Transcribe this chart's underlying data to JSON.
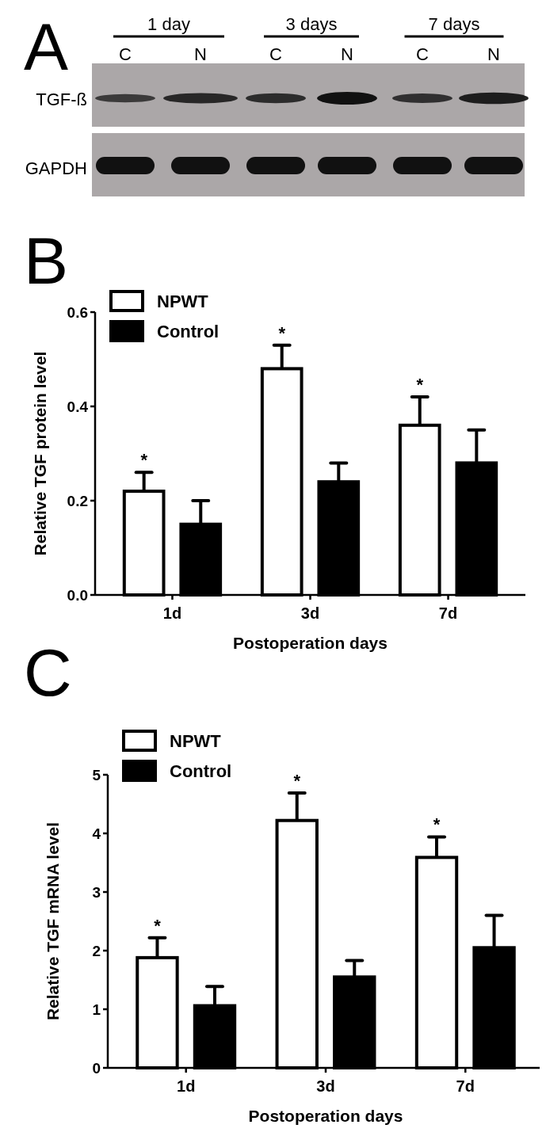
{
  "chart_data": [
    {
      "type": "other",
      "title": "A",
      "annotations": [
        "1 day",
        "3 days",
        "7 days",
        "C",
        "N",
        "C",
        "N",
        "C",
        "N",
        "TGF-ß",
        "GAPDH"
      ]
    },
    {
      "type": "bar",
      "title": "B",
      "xlabel": "Postoperation days",
      "ylabel": "Relative TGF protein level",
      "categories": [
        "1d",
        "3d",
        "7d"
      ],
      "series": [
        {
          "name": "NPWT",
          "color": "#ffffff",
          "values": [
            0.22,
            0.48,
            0.36
          ],
          "errors": [
            [
              0.22,
              0.26
            ],
            [
              0.48,
              0.53
            ],
            [
              0.36,
              0.42
            ]
          ]
        },
        {
          "name": "Control",
          "color": "#000000",
          "values": [
            0.15,
            0.24,
            0.28
          ],
          "errors": [
            [
              0.15,
              0.2
            ],
            [
              0.24,
              0.28
            ],
            [
              0.28,
              0.35
            ]
          ]
        }
      ],
      "ylim": [
        0,
        0.6
      ],
      "yticks": [
        {
          "value": 0,
          "label": "0.0"
        },
        0.2,
        0.4,
        0.6
      ],
      "legend": "top left",
      "annotations": [
        "*",
        "*",
        "*"
      ]
    },
    {
      "type": "bar",
      "title": "C",
      "xlabel": "Postoperation days",
      "ylabel": "Relative TGF mRNA level",
      "categories": [
        "1d",
        "3d",
        "7d"
      ],
      "series": [
        {
          "name": "NPWT",
          "color": "#ffffff",
          "values": [
            1.88,
            4.22,
            3.59
          ],
          "errors": [
            [
              1.88,
              2.22
            ],
            [
              4.22,
              4.69
            ],
            [
              3.59,
              3.94
            ]
          ]
        },
        {
          "name": "Control",
          "color": "#000000",
          "values": [
            1.06,
            1.55,
            2.05
          ],
          "errors": [
            [
              1.06,
              1.39
            ],
            [
              1.55,
              1.83
            ],
            [
              2.05,
              2.6
            ]
          ]
        }
      ],
      "ylim": [
        0,
        5
      ],
      "yticks": [
        0,
        1,
        2,
        3,
        4,
        5
      ],
      "legend": "top left",
      "annotations": [
        "*",
        "*",
        "*"
      ]
    }
  ]
}
